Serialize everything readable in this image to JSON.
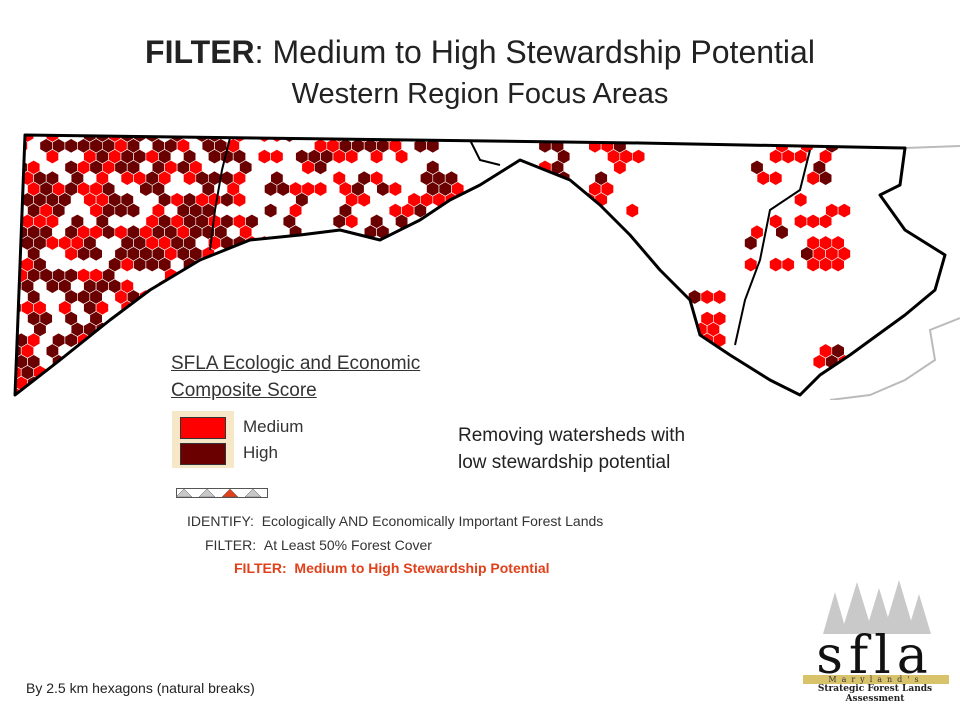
{
  "header": {
    "title_bold": "FILTER",
    "title_rest": ":  Medium to High Stewardship Potential",
    "subtitle": "Western Region Focus Areas"
  },
  "legend": {
    "title_line1": "SFLA Ecologic and Economic",
    "title_line2": "Composite Score",
    "items": [
      {
        "label": "Medium",
        "color": "#ff0000"
      },
      {
        "label": "High",
        "color": "#6b0000"
      }
    ]
  },
  "annotation": {
    "line1": "Removing watersheds with",
    "line2": "low stewardship potential"
  },
  "steps": [
    {
      "label": "IDENTIFY:",
      "text": "Ecologically AND Economically Important Forest Lands",
      "active": false
    },
    {
      "label": "FILTER:",
      "text": "At Least 50% Forest Cover",
      "active": false
    },
    {
      "label": "FILTER:",
      "text": "Medium to High Stewardship Potential",
      "active": true
    }
  ],
  "footnote": "By 2.5 km hexagons (natural breaks)",
  "logo": {
    "letters": "sfla",
    "band": "Maryland's",
    "tagline": "Strategic Forest Lands Assessment"
  },
  "colors": {
    "medium": "#ff0000",
    "high": "#6b0000",
    "active_step": "#e0401a",
    "neighbor_outline": "#bbbbbb",
    "water": "#9fd9ee"
  }
}
